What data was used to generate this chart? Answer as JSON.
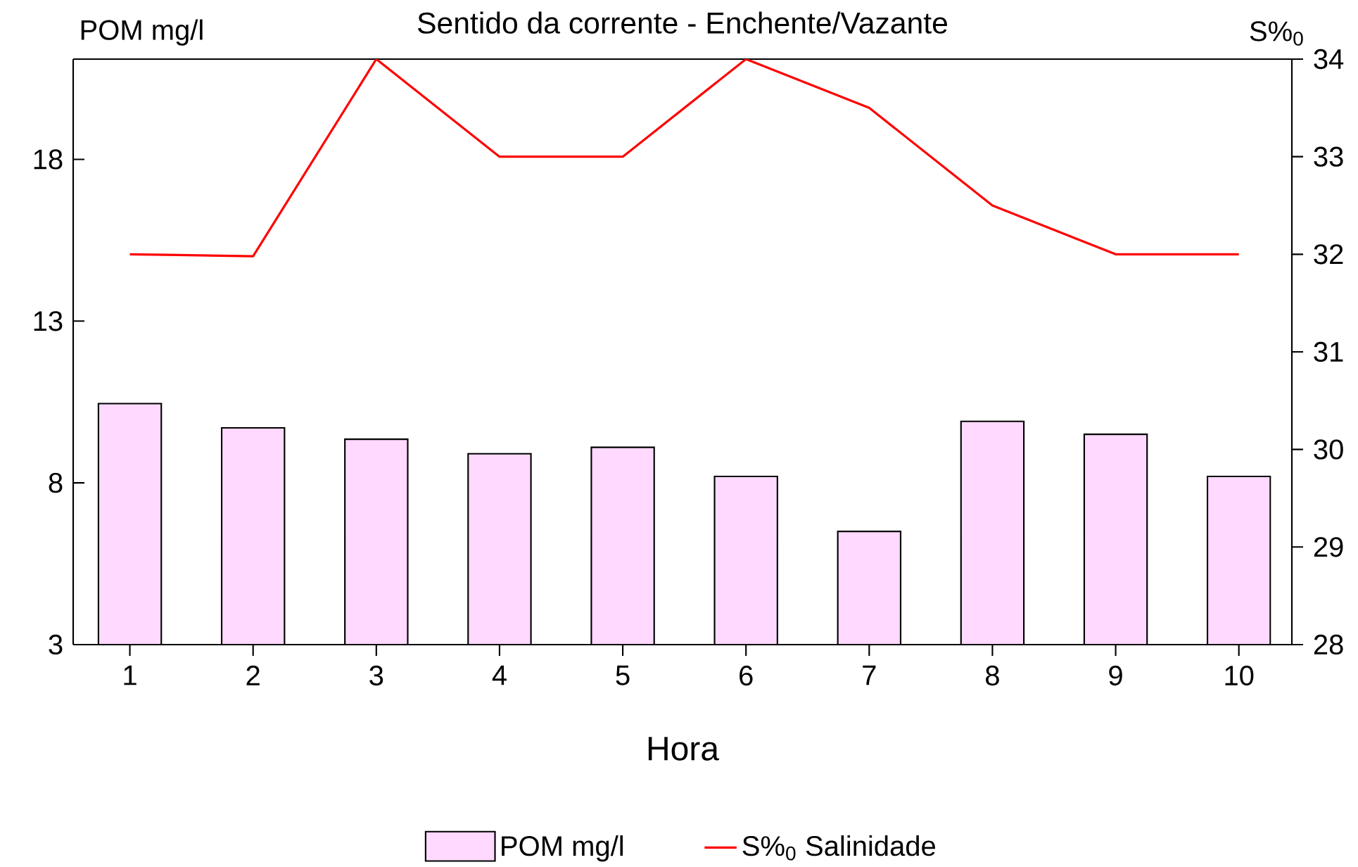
{
  "chart_data": {
    "type": "bar",
    "title": "Sentido da corrente - Enchente/Vazante",
    "xlabel": "Hora",
    "ylabel": "POM mg/l",
    "y2label": "S%$_{0}$",
    "categories": [
      "1",
      "2",
      "3",
      "4",
      "5",
      "6",
      "7",
      "8",
      "9",
      "10"
    ],
    "series": [
      {
        "name": "POM mg/l",
        "color": "#ffd9ff",
        "values": [
          10.45,
          9.7,
          9.35,
          8.9,
          9.1,
          8.2,
          6.5,
          9.9,
          9.5,
          8.2
        ]
      },
      {
        "name": "S%$_{0}$  Salinidade",
        "type": "line",
        "axis": "y2",
        "color": "#ff0000",
        "values": [
          32.0,
          31.98,
          34.0,
          33.0,
          33.0,
          34.0,
          33.5,
          32.5,
          32.0,
          32.0
        ]
      }
    ],
    "ylim": [
      3,
      21.1
    ],
    "yticks": [
      3,
      8,
      13,
      18
    ],
    "y2lim": [
      28,
      34
    ],
    "y2ticks": [
      28,
      29,
      30,
      31,
      32,
      33,
      34
    ],
    "legend": "bottom"
  }
}
